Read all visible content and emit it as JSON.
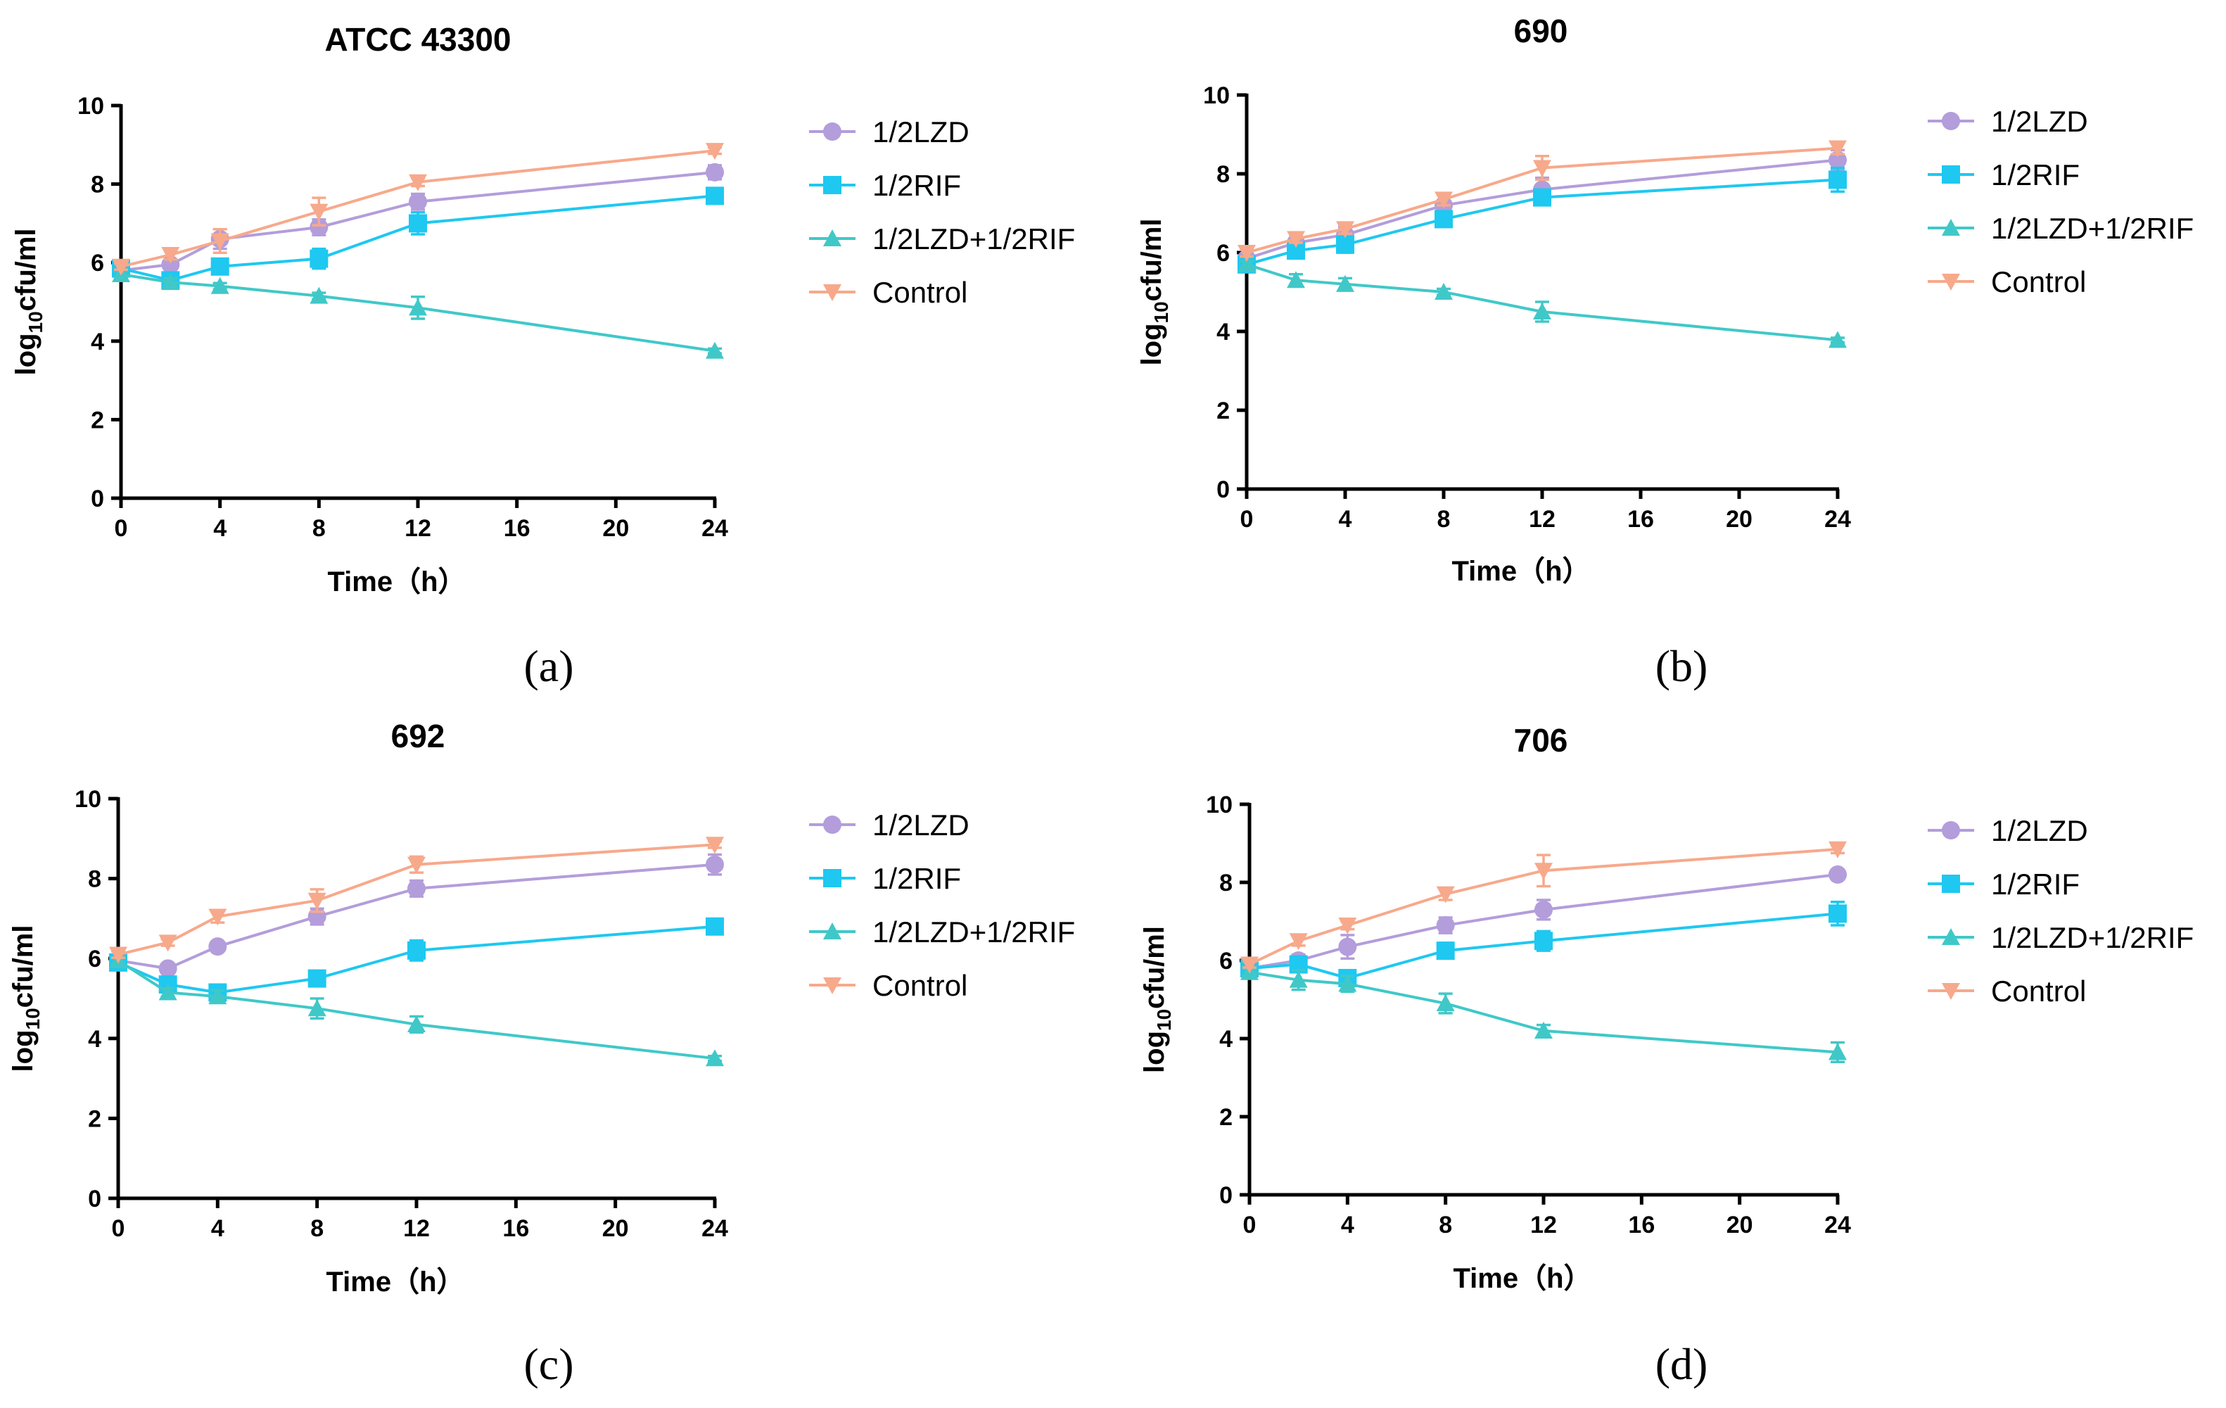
{
  "chart_data": [
    {
      "type": "line",
      "title": "ATCC 43300",
      "panel_label": "(a)",
      "xlabel": "Time（h）",
      "ylabel_main": "log",
      "ylabel_sub": "10",
      "ylabel_tail": "cfu/ml",
      "xlim": [
        0,
        24
      ],
      "ylim": [
        0,
        10
      ],
      "xticks": [
        0,
        4,
        8,
        12,
        16,
        20,
        24
      ],
      "yticks": [
        0,
        2,
        4,
        6,
        8,
        10
      ],
      "x": [
        0,
        2,
        4,
        8,
        12,
        24
      ],
      "legend": "right",
      "series": [
        {
          "name": "1/2LZD",
          "color": "#b39ddb",
          "marker": "circle",
          "values": [
            5.8,
            5.95,
            6.6,
            6.9,
            7.55,
            8.3
          ],
          "err": [
            0.1,
            0.12,
            0.25,
            0.2,
            0.2,
            0.18
          ]
        },
        {
          "name": "1/2RIF",
          "color": "#1ec8f0",
          "marker": "square",
          "values": [
            5.85,
            5.55,
            5.9,
            6.1,
            7.0,
            7.7
          ],
          "err": [
            0.1,
            0.1,
            0.15,
            0.25,
            0.28,
            0.1
          ]
        },
        {
          "name": "1/2LZD+1/2RIF",
          "color": "#40c8c8",
          "marker": "triangle",
          "values": [
            5.7,
            5.5,
            5.4,
            5.15,
            4.85,
            3.75
          ],
          "err": [
            0.08,
            0.1,
            0.08,
            0.08,
            0.28,
            0.06
          ]
        },
        {
          "name": "Control",
          "color": "#f7a98b",
          "marker": "triangle-down",
          "values": [
            5.9,
            6.2,
            6.55,
            7.3,
            8.05,
            8.85
          ],
          "err": [
            0.08,
            0.12,
            0.3,
            0.35,
            0.1,
            0.08
          ]
        }
      ]
    },
    {
      "type": "line",
      "title": "690",
      "panel_label": "(b)",
      "xlabel": "Time（h）",
      "ylabel_main": "log",
      "ylabel_sub": "10",
      "ylabel_tail": "cfu/ml",
      "xlim": [
        0,
        24
      ],
      "ylim": [
        0,
        10
      ],
      "xticks": [
        0,
        4,
        8,
        12,
        16,
        20,
        24
      ],
      "yticks": [
        0,
        2,
        4,
        6,
        8,
        10
      ],
      "x": [
        0,
        2,
        4,
        8,
        12,
        24
      ],
      "legend": "right",
      "series": [
        {
          "name": "1/2LZD",
          "color": "#b39ddb",
          "marker": "circle",
          "values": [
            5.85,
            6.25,
            6.45,
            7.2,
            7.6,
            8.35
          ],
          "err": [
            0.1,
            0.12,
            0.2,
            0.3,
            0.3,
            0.25
          ]
        },
        {
          "name": "1/2RIF",
          "color": "#1ec8f0",
          "marker": "square",
          "values": [
            5.7,
            6.05,
            6.2,
            6.85,
            7.4,
            7.85
          ],
          "err": [
            0.1,
            0.15,
            0.2,
            0.15,
            0.15,
            0.3
          ]
        },
        {
          "name": "1/2LZD+1/2RIF",
          "color": "#40c8c8",
          "marker": "triangle",
          "values": [
            5.7,
            5.3,
            5.2,
            5.0,
            4.5,
            3.78
          ],
          "err": [
            0.08,
            0.15,
            0.15,
            0.08,
            0.25,
            0.06
          ]
        },
        {
          "name": "Control",
          "color": "#f7a98b",
          "marker": "triangle-down",
          "values": [
            6.0,
            6.35,
            6.6,
            7.35,
            8.15,
            8.65
          ],
          "err": [
            0.1,
            0.1,
            0.12,
            0.15,
            0.3,
            0.15
          ]
        }
      ]
    },
    {
      "type": "line",
      "title": "692",
      "panel_label": "(c)",
      "xlabel": "Time（h）",
      "ylabel_main": "log",
      "ylabel_sub": "10",
      "ylabel_tail": "cfu/ml",
      "xlim": [
        0,
        24
      ],
      "ylim": [
        0,
        10
      ],
      "xticks": [
        0,
        4,
        8,
        12,
        16,
        20,
        24
      ],
      "yticks": [
        0,
        2,
        4,
        6,
        8,
        10
      ],
      "x": [
        0,
        2,
        4,
        8,
        12,
        24
      ],
      "legend": "right",
      "series": [
        {
          "name": "1/2LZD",
          "color": "#b39ddb",
          "marker": "circle",
          "values": [
            5.95,
            5.75,
            6.3,
            7.05,
            7.75,
            8.35
          ],
          "err": [
            0.08,
            0.08,
            0.08,
            0.2,
            0.2,
            0.25
          ]
        },
        {
          "name": "1/2RIF",
          "color": "#1ec8f0",
          "marker": "square",
          "values": [
            5.9,
            5.35,
            5.15,
            5.5,
            6.2,
            6.8
          ],
          "err": [
            0.08,
            0.12,
            0.15,
            0.1,
            0.25,
            0.08
          ]
        },
        {
          "name": "1/2LZD+1/2RIF",
          "color": "#40c8c8",
          "marker": "triangle",
          "values": [
            5.95,
            5.15,
            5.05,
            4.75,
            4.35,
            3.5
          ],
          "err": [
            0.08,
            0.1,
            0.15,
            0.25,
            0.2,
            0.06
          ]
        },
        {
          "name": "Control",
          "color": "#f7a98b",
          "marker": "triangle-down",
          "values": [
            6.1,
            6.4,
            7.05,
            7.45,
            8.35,
            8.85
          ],
          "err": [
            0.08,
            0.08,
            0.15,
            0.28,
            0.2,
            0.08
          ]
        }
      ]
    },
    {
      "type": "line",
      "title": "706",
      "panel_label": "(d)",
      "xlabel": "Time（h）",
      "ylabel_main": "log",
      "ylabel_sub": "10",
      "ylabel_tail": "cfu/ml",
      "xlim": [
        0,
        24
      ],
      "ylim": [
        0,
        10
      ],
      "xticks": [
        0,
        4,
        8,
        12,
        16,
        20,
        24
      ],
      "yticks": [
        0,
        2,
        4,
        6,
        8,
        10
      ],
      "x": [
        0,
        2,
        4,
        8,
        12,
        24
      ],
      "legend": "right",
      "series": [
        {
          "name": "1/2LZD",
          "color": "#b39ddb",
          "marker": "circle",
          "values": [
            5.8,
            6.0,
            6.35,
            6.9,
            7.3,
            8.2
          ],
          "err": [
            0.1,
            0.15,
            0.3,
            0.2,
            0.25,
            0.08
          ]
        },
        {
          "name": "1/2RIF",
          "color": "#1ec8f0",
          "marker": "square",
          "values": [
            5.8,
            5.9,
            5.55,
            6.25,
            6.5,
            7.2
          ],
          "err": [
            0.08,
            0.15,
            0.2,
            0.2,
            0.25,
            0.3
          ]
        },
        {
          "name": "1/2LZD+1/2RIF",
          "color": "#40c8c8",
          "marker": "triangle",
          "values": [
            5.7,
            5.5,
            5.4,
            4.9,
            4.2,
            3.65
          ],
          "err": [
            0.08,
            0.25,
            0.2,
            0.25,
            0.15,
            0.25
          ]
        },
        {
          "name": "Control",
          "color": "#f7a98b",
          "marker": "triangle-down",
          "values": [
            5.9,
            6.5,
            6.9,
            7.7,
            8.3,
            8.85
          ],
          "err": [
            0.08,
            0.12,
            0.1,
            0.15,
            0.4,
            0.1
          ]
        }
      ]
    }
  ]
}
